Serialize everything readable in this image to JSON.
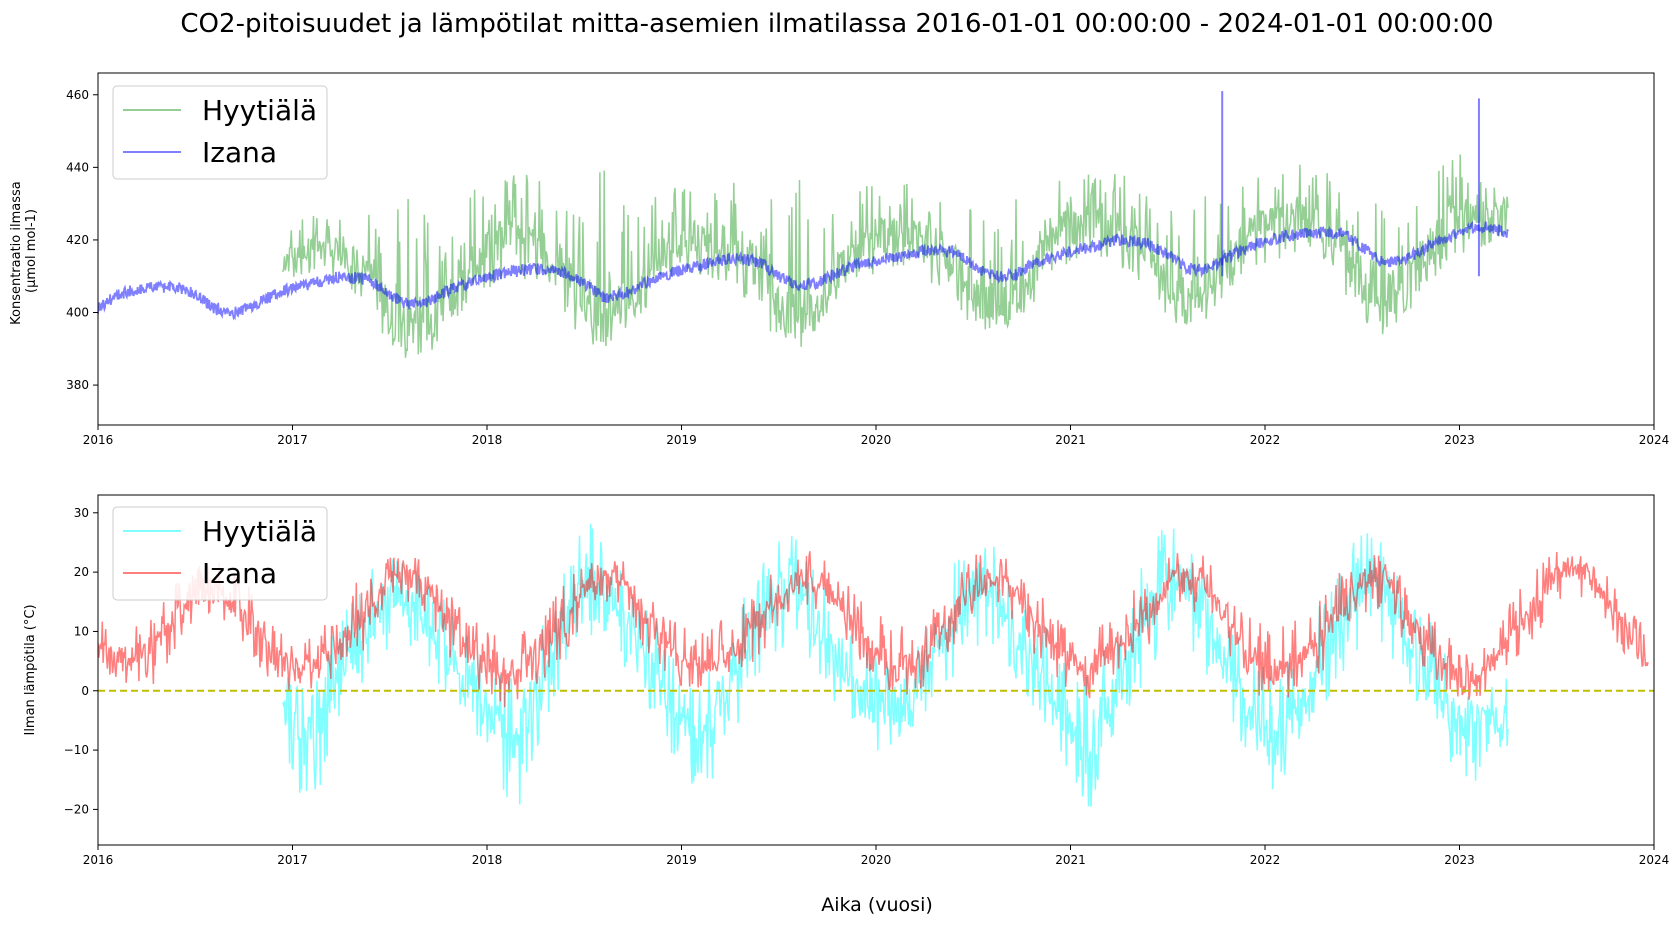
{
  "figure": {
    "title": "CO2-pitoisuudet ja lämpötilat mitta-asemien ilmatilassa 2016-01-01 00:00:00 - 2024-01-01 00:00:00",
    "xlabel": "Aika (vuosi)"
  },
  "chart_data": [
    {
      "type": "line",
      "ylabel_lines": [
        "Konsentraatio ilmassa",
        "(µmol mol-1)"
      ],
      "xlim": [
        2016,
        2024
      ],
      "ylim": [
        369,
        466
      ],
      "xticks": [
        "2016",
        "2017",
        "2018",
        "2019",
        "2020",
        "2021",
        "2022",
        "2023",
        "2024"
      ],
      "yticks": [
        380,
        400,
        420,
        440,
        460
      ],
      "grid": false,
      "legend": "top-left",
      "series": [
        {
          "name": "Hyytiälä",
          "color": "#2ca02c",
          "x": [
            2016.95,
            2017.1,
            2017.25,
            2017.4,
            2017.5,
            2017.6,
            2017.7,
            2017.8,
            2017.95,
            2018.1,
            2018.25,
            2018.4,
            2018.5,
            2018.6,
            2018.7,
            2018.8,
            2018.95,
            2019.1,
            2019.25,
            2019.4,
            2019.5,
            2019.6,
            2019.7,
            2019.8,
            2019.95,
            2020.1,
            2020.25,
            2020.4,
            2020.5,
            2020.6,
            2020.7,
            2020.8,
            2020.95,
            2021.1,
            2021.25,
            2021.4,
            2021.5,
            2021.6,
            2021.7,
            2021.8,
            2021.95,
            2022.1,
            2022.25,
            2022.4,
            2022.5,
            2022.6,
            2022.7,
            2022.8,
            2022.95,
            2023.1,
            2023.25
          ],
          "values": [
            414,
            418,
            417,
            412,
            400,
            394,
            398,
            405,
            414,
            422,
            420,
            413,
            403,
            399,
            402,
            408,
            419,
            421,
            419,
            413,
            404,
            400,
            403,
            411,
            421,
            422,
            421,
            415,
            404,
            400,
            403,
            411,
            424,
            426,
            423,
            417,
            406,
            403,
            407,
            414,
            424,
            426,
            425,
            419,
            408,
            402,
            407,
            416,
            425,
            428,
            428
          ],
          "range": [
            [
              408,
              425
            ],
            [
              410,
              430
            ],
            [
              410,
              428
            ],
            [
              400,
              428
            ],
            [
              390,
              430
            ],
            [
              387,
              438
            ],
            [
              388,
              432
            ],
            [
              396,
              425
            ],
            [
              405,
              435
            ],
            [
              408,
              440
            ],
            [
              408,
              438
            ],
            [
              400,
              432
            ],
            [
              388,
              428
            ],
            [
              390,
              442
            ],
            [
              395,
              430
            ],
            [
              400,
              428
            ],
            [
              410,
              438
            ],
            [
              410,
              436
            ],
            [
              408,
              436
            ],
            [
              400,
              435
            ],
            [
              390,
              430
            ],
            [
              390,
              440
            ],
            [
              393,
              432
            ],
            [
              402,
              428
            ],
            [
              410,
              436
            ],
            [
              412,
              438
            ],
            [
              410,
              432
            ],
            [
              402,
              435
            ],
            [
              395,
              428
            ],
            [
              395,
              438
            ],
            [
              396,
              432
            ],
            [
              402,
              430
            ],
            [
              412,
              442
            ],
            [
              414,
              438
            ],
            [
              413,
              440
            ],
            [
              405,
              432
            ],
            [
              398,
              430
            ],
            [
              396,
              438
            ],
            [
              398,
              432
            ],
            [
              405,
              430
            ],
            [
              413,
              440
            ],
            [
              415,
              442
            ],
            [
              414,
              440
            ],
            [
              406,
              438
            ],
            [
              398,
              430
            ],
            [
              393,
              438
            ],
            [
              396,
              432
            ],
            [
              406,
              430
            ],
            [
              414,
              446
            ],
            [
              418,
              440
            ],
            [
              420,
              432
            ]
          ]
        },
        {
          "name": "Izana",
          "color": "#0000ff",
          "x": [
            2016.0,
            2016.1,
            2016.25,
            2016.4,
            2016.5,
            2016.6,
            2016.7,
            2016.8,
            2016.95,
            2017.1,
            2017.25,
            2017.4,
            2017.5,
            2017.6,
            2017.7,
            2017.8,
            2017.95,
            2018.1,
            2018.25,
            2018.4,
            2018.5,
            2018.6,
            2018.7,
            2018.8,
            2018.95,
            2019.1,
            2019.25,
            2019.4,
            2019.5,
            2019.6,
            2019.7,
            2019.8,
            2019.95,
            2020.1,
            2020.25,
            2020.4,
            2020.5,
            2020.6,
            2020.7,
            2020.8,
            2020.95,
            2021.1,
            2021.25,
            2021.4,
            2021.5,
            2021.6,
            2021.7,
            2021.8,
            2021.95,
            2022.1,
            2022.25,
            2022.4,
            2022.5,
            2022.6,
            2022.7,
            2022.8,
            2022.95,
            2023.1,
            2023.25
          ],
          "values": [
            401,
            405,
            407,
            407,
            405,
            401,
            400,
            402,
            406,
            408,
            410,
            409,
            405,
            402,
            403,
            406,
            409,
            411,
            412,
            411,
            408,
            404,
            405,
            408,
            411,
            413,
            415,
            414,
            410,
            407,
            408,
            411,
            414,
            415,
            417,
            417,
            413,
            410,
            410,
            413,
            416,
            418,
            420,
            419,
            416,
            412,
            412,
            415,
            419,
            421,
            422,
            422,
            418,
            414,
            414,
            417,
            421,
            424,
            422
          ],
          "spikes": [
            [
              2021.78,
              461
            ],
            [
              2023.1,
              459
            ]
          ]
        }
      ]
    },
    {
      "type": "line",
      "ylabel": "Ilman lämpötila (°C)",
      "xlim": [
        2016,
        2024
      ],
      "ylim": [
        -26,
        33
      ],
      "xticks": [
        "2016",
        "2017",
        "2018",
        "2019",
        "2020",
        "2021",
        "2022",
        "2023",
        "2024"
      ],
      "yticks": [
        "−20",
        "−10",
        "0",
        "10",
        "20",
        "30"
      ],
      "ytick_values": [
        -20,
        -10,
        0,
        10,
        20,
        30
      ],
      "grid": false,
      "legend": "top-left",
      "hline": {
        "y": 0,
        "color": "#bfbf00",
        "style": "dashed"
      },
      "series": [
        {
          "name": "Hyytiälä",
          "color": "#00ffff",
          "x": [
            2016.95,
            2017.05,
            2017.15,
            2017.3,
            2017.45,
            2017.55,
            2017.7,
            2017.85,
            2018.0,
            2018.15,
            2018.3,
            2018.45,
            2018.55,
            2018.7,
            2018.85,
            2019.0,
            2019.1,
            2019.3,
            2019.45,
            2019.55,
            2019.7,
            2019.85,
            2020.0,
            2020.15,
            2020.3,
            2020.45,
            2020.55,
            2020.7,
            2020.85,
            2021.0,
            2021.1,
            2021.3,
            2021.45,
            2021.55,
            2021.7,
            2021.85,
            2022.0,
            2022.15,
            2022.3,
            2022.45,
            2022.55,
            2022.7,
            2022.85,
            2023.0,
            2023.1,
            2023.25
          ],
          "values": [
            -3,
            -6,
            -4,
            6,
            14,
            17,
            11,
            4,
            -4,
            -9,
            3,
            15,
            20,
            12,
            3,
            -6,
            -7,
            5,
            15,
            19,
            11,
            2,
            -3,
            -3,
            6,
            15,
            19,
            11,
            3,
            -6,
            -9,
            5,
            17,
            19,
            12,
            1,
            -9,
            -5,
            6,
            15,
            20,
            12,
            2,
            -6,
            -5,
            -5
          ],
          "range": [
            [
              -10,
              3
            ],
            [
              -21,
              3
            ],
            [
              -16,
              5
            ],
            [
              -2,
              18
            ],
            [
              5,
              22
            ],
            [
              8,
              23
            ],
            [
              3,
              20
            ],
            [
              -3,
              12
            ],
            [
              -12,
              5
            ],
            [
              -22,
              2
            ],
            [
              -5,
              12
            ],
            [
              5,
              26
            ],
            [
              10,
              29
            ],
            [
              4,
              22
            ],
            [
              -4,
              13
            ],
            [
              -15,
              4
            ],
            [
              -20,
              2
            ],
            [
              -5,
              15
            ],
            [
              5,
              25
            ],
            [
              8,
              29
            ],
            [
              2,
              20
            ],
            [
              -5,
              10
            ],
            [
              -12,
              6
            ],
            [
              -10,
              4
            ],
            [
              -3,
              16
            ],
            [
              5,
              25
            ],
            [
              8,
              28
            ],
            [
              2,
              21
            ],
            [
              -5,
              12
            ],
            [
              -14,
              5
            ],
            [
              -23,
              2
            ],
            [
              -4,
              16
            ],
            [
              6,
              28
            ],
            [
              8,
              30
            ],
            [
              2,
              22
            ],
            [
              -8,
              10
            ],
            [
              -20,
              4
            ],
            [
              -15,
              5
            ],
            [
              -4,
              16
            ],
            [
              5,
              25
            ],
            [
              10,
              28
            ],
            [
              3,
              22
            ],
            [
              -6,
              12
            ],
            [
              -15,
              3
            ],
            [
              -17,
              2
            ],
            [
              -12,
              3
            ]
          ]
        },
        {
          "name": "Izana",
          "color": "#ff0000",
          "x": [
            2016.0,
            2016.15,
            2016.3,
            2016.45,
            2016.6,
            2016.75,
            2016.9,
            2017.05,
            2017.2,
            2017.35,
            2017.5,
            2017.65,
            2017.8,
            2017.95,
            2018.1,
            2018.25,
            2018.4,
            2018.55,
            2018.7,
            2018.85,
            2019.0,
            2019.15,
            2019.3,
            2019.45,
            2019.6,
            2019.75,
            2019.9,
            2020.05,
            2020.2,
            2020.35,
            2020.5,
            2020.65,
            2020.8,
            2020.95,
            2021.1,
            2021.25,
            2021.4,
            2021.55,
            2021.7,
            2021.85,
            2022.0,
            2022.15,
            2022.3,
            2022.45,
            2022.6,
            2022.75,
            2022.9,
            2023.05,
            2023.2,
            2023.35,
            2023.5,
            2023.65,
            2023.8,
            2023.97
          ],
          "values": [
            8,
            5,
            8,
            14,
            18,
            12,
            6,
            3,
            7,
            12,
            19,
            20,
            12,
            6,
            2,
            6,
            12,
            19,
            19,
            11,
            5,
            5,
            8,
            14,
            19,
            18,
            10,
            5,
            4,
            10,
            18,
            20,
            12,
            5,
            4,
            8,
            13,
            20,
            18,
            10,
            3,
            5,
            9,
            18,
            20,
            12,
            5,
            1,
            6,
            13,
            20,
            20,
            13,
            4
          ],
          "range": [
            [
              5,
              12
            ],
            [
              -1,
              10
            ],
            [
              1,
              14
            ],
            [
              10,
              20
            ],
            [
              14,
              23
            ],
            [
              7,
              20
            ],
            [
              0,
              13
            ],
            [
              -1,
              10
            ],
            [
              1,
              14
            ],
            [
              6,
              20
            ],
            [
              14,
              23
            ],
            [
              15,
              23
            ],
            [
              6,
              17
            ],
            [
              0,
              12
            ],
            [
              -3,
              8
            ],
            [
              0,
              13
            ],
            [
              6,
              19
            ],
            [
              15,
              22
            ],
            [
              13,
              22
            ],
            [
              5,
              17
            ],
            [
              0,
              11
            ],
            [
              0,
              11
            ],
            [
              2,
              14
            ],
            [
              8,
              20
            ],
            [
              14,
              24
            ],
            [
              13,
              23
            ],
            [
              5,
              16
            ],
            [
              0,
              12
            ],
            [
              -2,
              11
            ],
            [
              4,
              16
            ],
            [
              12,
              23
            ],
            [
              15,
              23
            ],
            [
              6,
              18
            ],
            [
              0,
              12
            ],
            [
              -2,
              12
            ],
            [
              2,
              15
            ],
            [
              7,
              20
            ],
            [
              15,
              24
            ],
            [
              12,
              23
            ],
            [
              4,
              16
            ],
            [
              -2,
              11
            ],
            [
              -1,
              12
            ],
            [
              3,
              16
            ],
            [
              12,
              23
            ],
            [
              14,
              23
            ],
            [
              6,
              18
            ],
            [
              -1,
              11
            ],
            [
              -3,
              6
            ],
            [
              2,
              12
            ],
            [
              7,
              19
            ],
            [
              15,
              24
            ],
            [
              14,
              23
            ],
            [
              7,
              18
            ],
            [
              2,
              10
            ]
          ]
        }
      ]
    }
  ]
}
